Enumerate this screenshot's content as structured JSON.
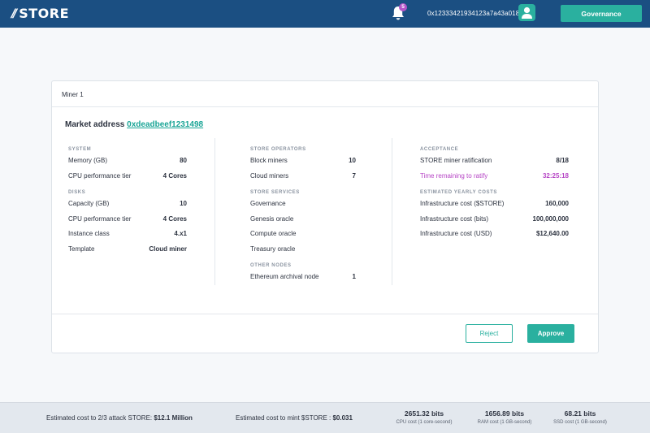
{
  "header": {
    "logo_mark": "//",
    "logo_text": "STORE",
    "notification_count": "5",
    "wallet_address": "0x12333421934123a7a43a018",
    "governance_label": "Governance"
  },
  "card": {
    "title": "Miner 1",
    "market_label": "Market address ",
    "market_address": "0xdeadbeef1231498",
    "col1": {
      "system_title": "SYSTEM",
      "system": [
        {
          "label": "Memory (GB)",
          "value": "80"
        },
        {
          "label": "CPU performance tier",
          "value": "4 Cores"
        }
      ],
      "disks_title": "DISKS",
      "disks": [
        {
          "label": "Capacity (GB)",
          "value": "10"
        },
        {
          "label": "CPU performance tier",
          "value": "4 Cores"
        },
        {
          "label": "Instance class",
          "value": "4.x1"
        },
        {
          "label": "Template",
          "value": "Cloud miner"
        }
      ]
    },
    "col2": {
      "operators_title": "STORE OPERATORS",
      "operators": [
        {
          "label": "Block miners",
          "value": "10"
        },
        {
          "label": "Cloud miners",
          "value": "7"
        }
      ],
      "services_title": "STORE SERVICES",
      "services": [
        "Governance",
        "Genesis oracle",
        "Compute oracle",
        "Treasury oracle"
      ],
      "other_title": "OTHER NODES",
      "other": [
        {
          "label": "Ethereum archival node",
          "value": "1"
        }
      ]
    },
    "col3": {
      "acceptance_title": "ACCEPTANCE",
      "acceptance": [
        {
          "label": "STORE miner ratification",
          "value": "8/18"
        },
        {
          "label": "Time remaining to ratify",
          "value": "32:25:18"
        }
      ],
      "costs_title": "ESTIMATED YEARLY COSTS",
      "costs": [
        {
          "label": "Infrastructure cost ($STORE)",
          "value": "160,000"
        },
        {
          "label": "Infrastructure cost (bits)",
          "value": "100,000,000"
        },
        {
          "label": "Infrastructure cost (USD)",
          "value": "$12,640.00"
        }
      ]
    },
    "reject_label": "Reject",
    "approve_label": "Approve"
  },
  "footer": {
    "attack_label": "Estimated cost to 2/3 attack STORE: ",
    "attack_value": "$12.1 Million",
    "mint_label": "Estimated cost to mint $STORE : ",
    "mint_value": "$0.031",
    "cpu_value": "2651.32 bits",
    "cpu_label": "CPU cost (1 core-second)",
    "ram_value": "1656.89 bits",
    "ram_label": "RAM cost (1 GB-second)",
    "ssd_value": "68.21 bits",
    "ssd_label": "SSD cost (1 GB-second)"
  },
  "colors": {
    "header_bg": "#1b4f82",
    "accent": "#2ab09f",
    "highlight": "#b645c5"
  },
  "icons": [
    "bell-icon",
    "avatar-icon"
  ]
}
